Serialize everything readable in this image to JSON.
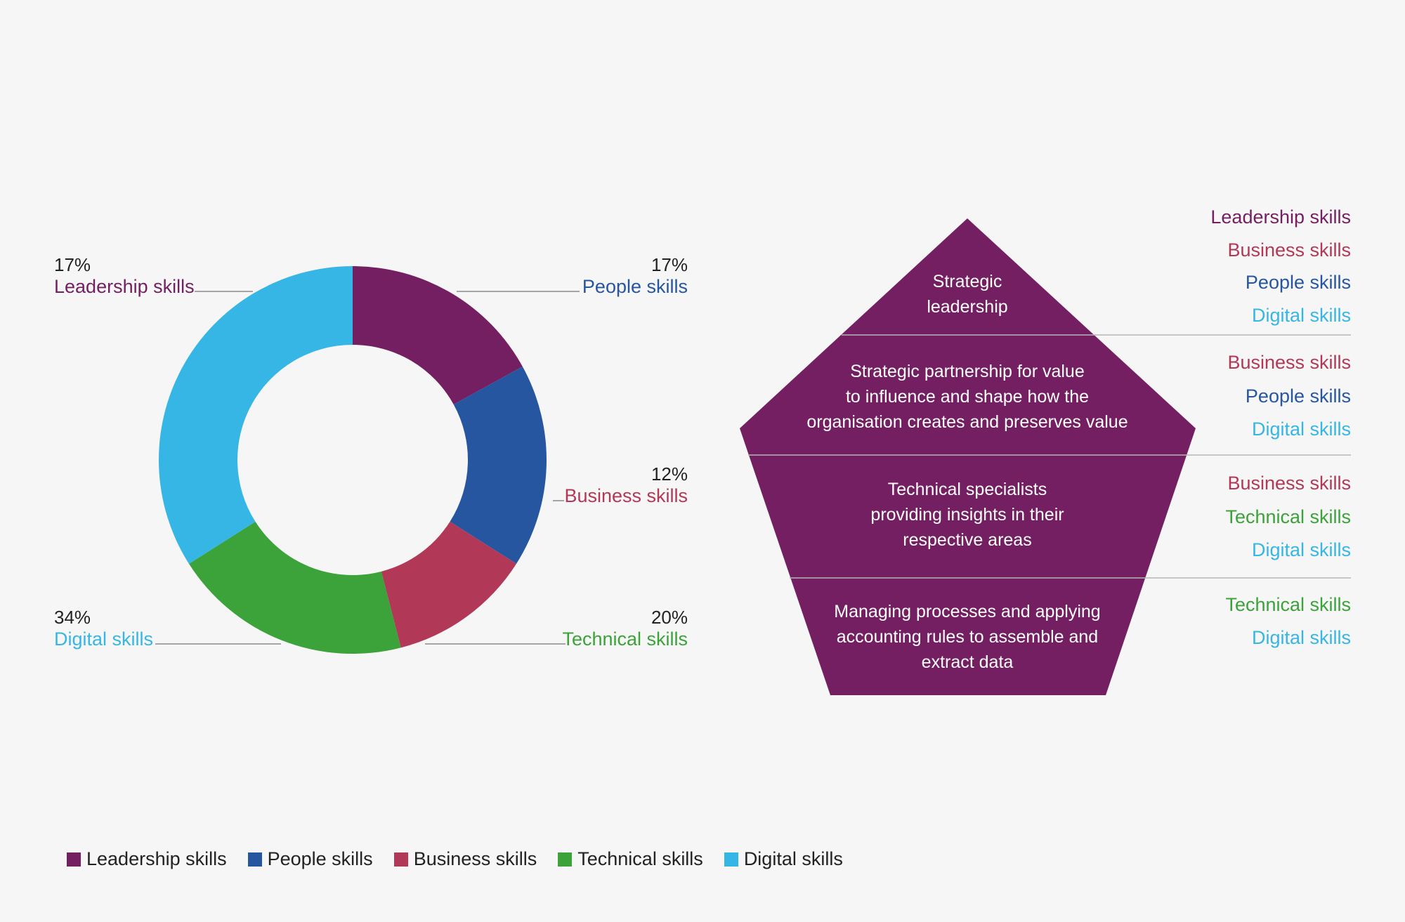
{
  "colors": {
    "leadership": "#741f62",
    "people": "#2756a0",
    "business": "#b23858",
    "technical": "#3ca23a",
    "digital": "#36b6e5",
    "pentagon": "#741f62",
    "divider": "#b5b5b5",
    "leader_line": "#8a8a8a",
    "text_dark": "#222222"
  },
  "chart_data": {
    "type": "pie",
    "donut": true,
    "title": "",
    "slices": [
      {
        "key": "leadership",
        "label": "Leadership skills",
        "value": 17,
        "value_label": "17%"
      },
      {
        "key": "people",
        "label": "People skills",
        "value": 17,
        "value_label": "17%"
      },
      {
        "key": "business",
        "label": "Business skills",
        "value": 12,
        "value_label": "12%"
      },
      {
        "key": "technical",
        "label": "Technical skills",
        "value": 20,
        "value_label": "20%"
      },
      {
        "key": "digital",
        "label": "Digital skills",
        "value": 34,
        "value_label": "34%"
      }
    ],
    "legend_placement": "bottom-left"
  },
  "pyramid": {
    "levels": [
      {
        "lines": [
          "Strategic",
          "leadership"
        ],
        "skills": [
          {
            "key": "leadership",
            "label": "Leadership skills"
          },
          {
            "key": "business",
            "label": "Business skills"
          },
          {
            "key": "people",
            "label": "People skills"
          },
          {
            "key": "digital",
            "label": "Digital skills"
          }
        ]
      },
      {
        "lines": [
          "Strategic partnership for value",
          "to influence and shape how the",
          "organisation creates and preserves value"
        ],
        "skills": [
          {
            "key": "business",
            "label": "Business skills"
          },
          {
            "key": "people",
            "label": "People skills"
          },
          {
            "key": "digital",
            "label": "Digital skills"
          }
        ]
      },
      {
        "lines": [
          "Technical specialists",
          "providing insights in their",
          "respective areas"
        ],
        "skills": [
          {
            "key": "business",
            "label": "Business skills"
          },
          {
            "key": "technical",
            "label": "Technical skills"
          },
          {
            "key": "digital",
            "label": "Digital skills"
          }
        ]
      },
      {
        "lines": [
          "Managing processes and applying",
          "accounting rules to assemble and",
          "extract data"
        ],
        "skills": [
          {
            "key": "technical",
            "label": "Technical skills"
          },
          {
            "key": "digital",
            "label": "Digital skills"
          }
        ]
      }
    ]
  },
  "legend": [
    {
      "key": "leadership",
      "label": "Leadership skills"
    },
    {
      "key": "people",
      "label": "People skills"
    },
    {
      "key": "business",
      "label": "Business skills"
    },
    {
      "key": "technical",
      "label": "Technical skills"
    },
    {
      "key": "digital",
      "label": "Digital skills"
    }
  ]
}
